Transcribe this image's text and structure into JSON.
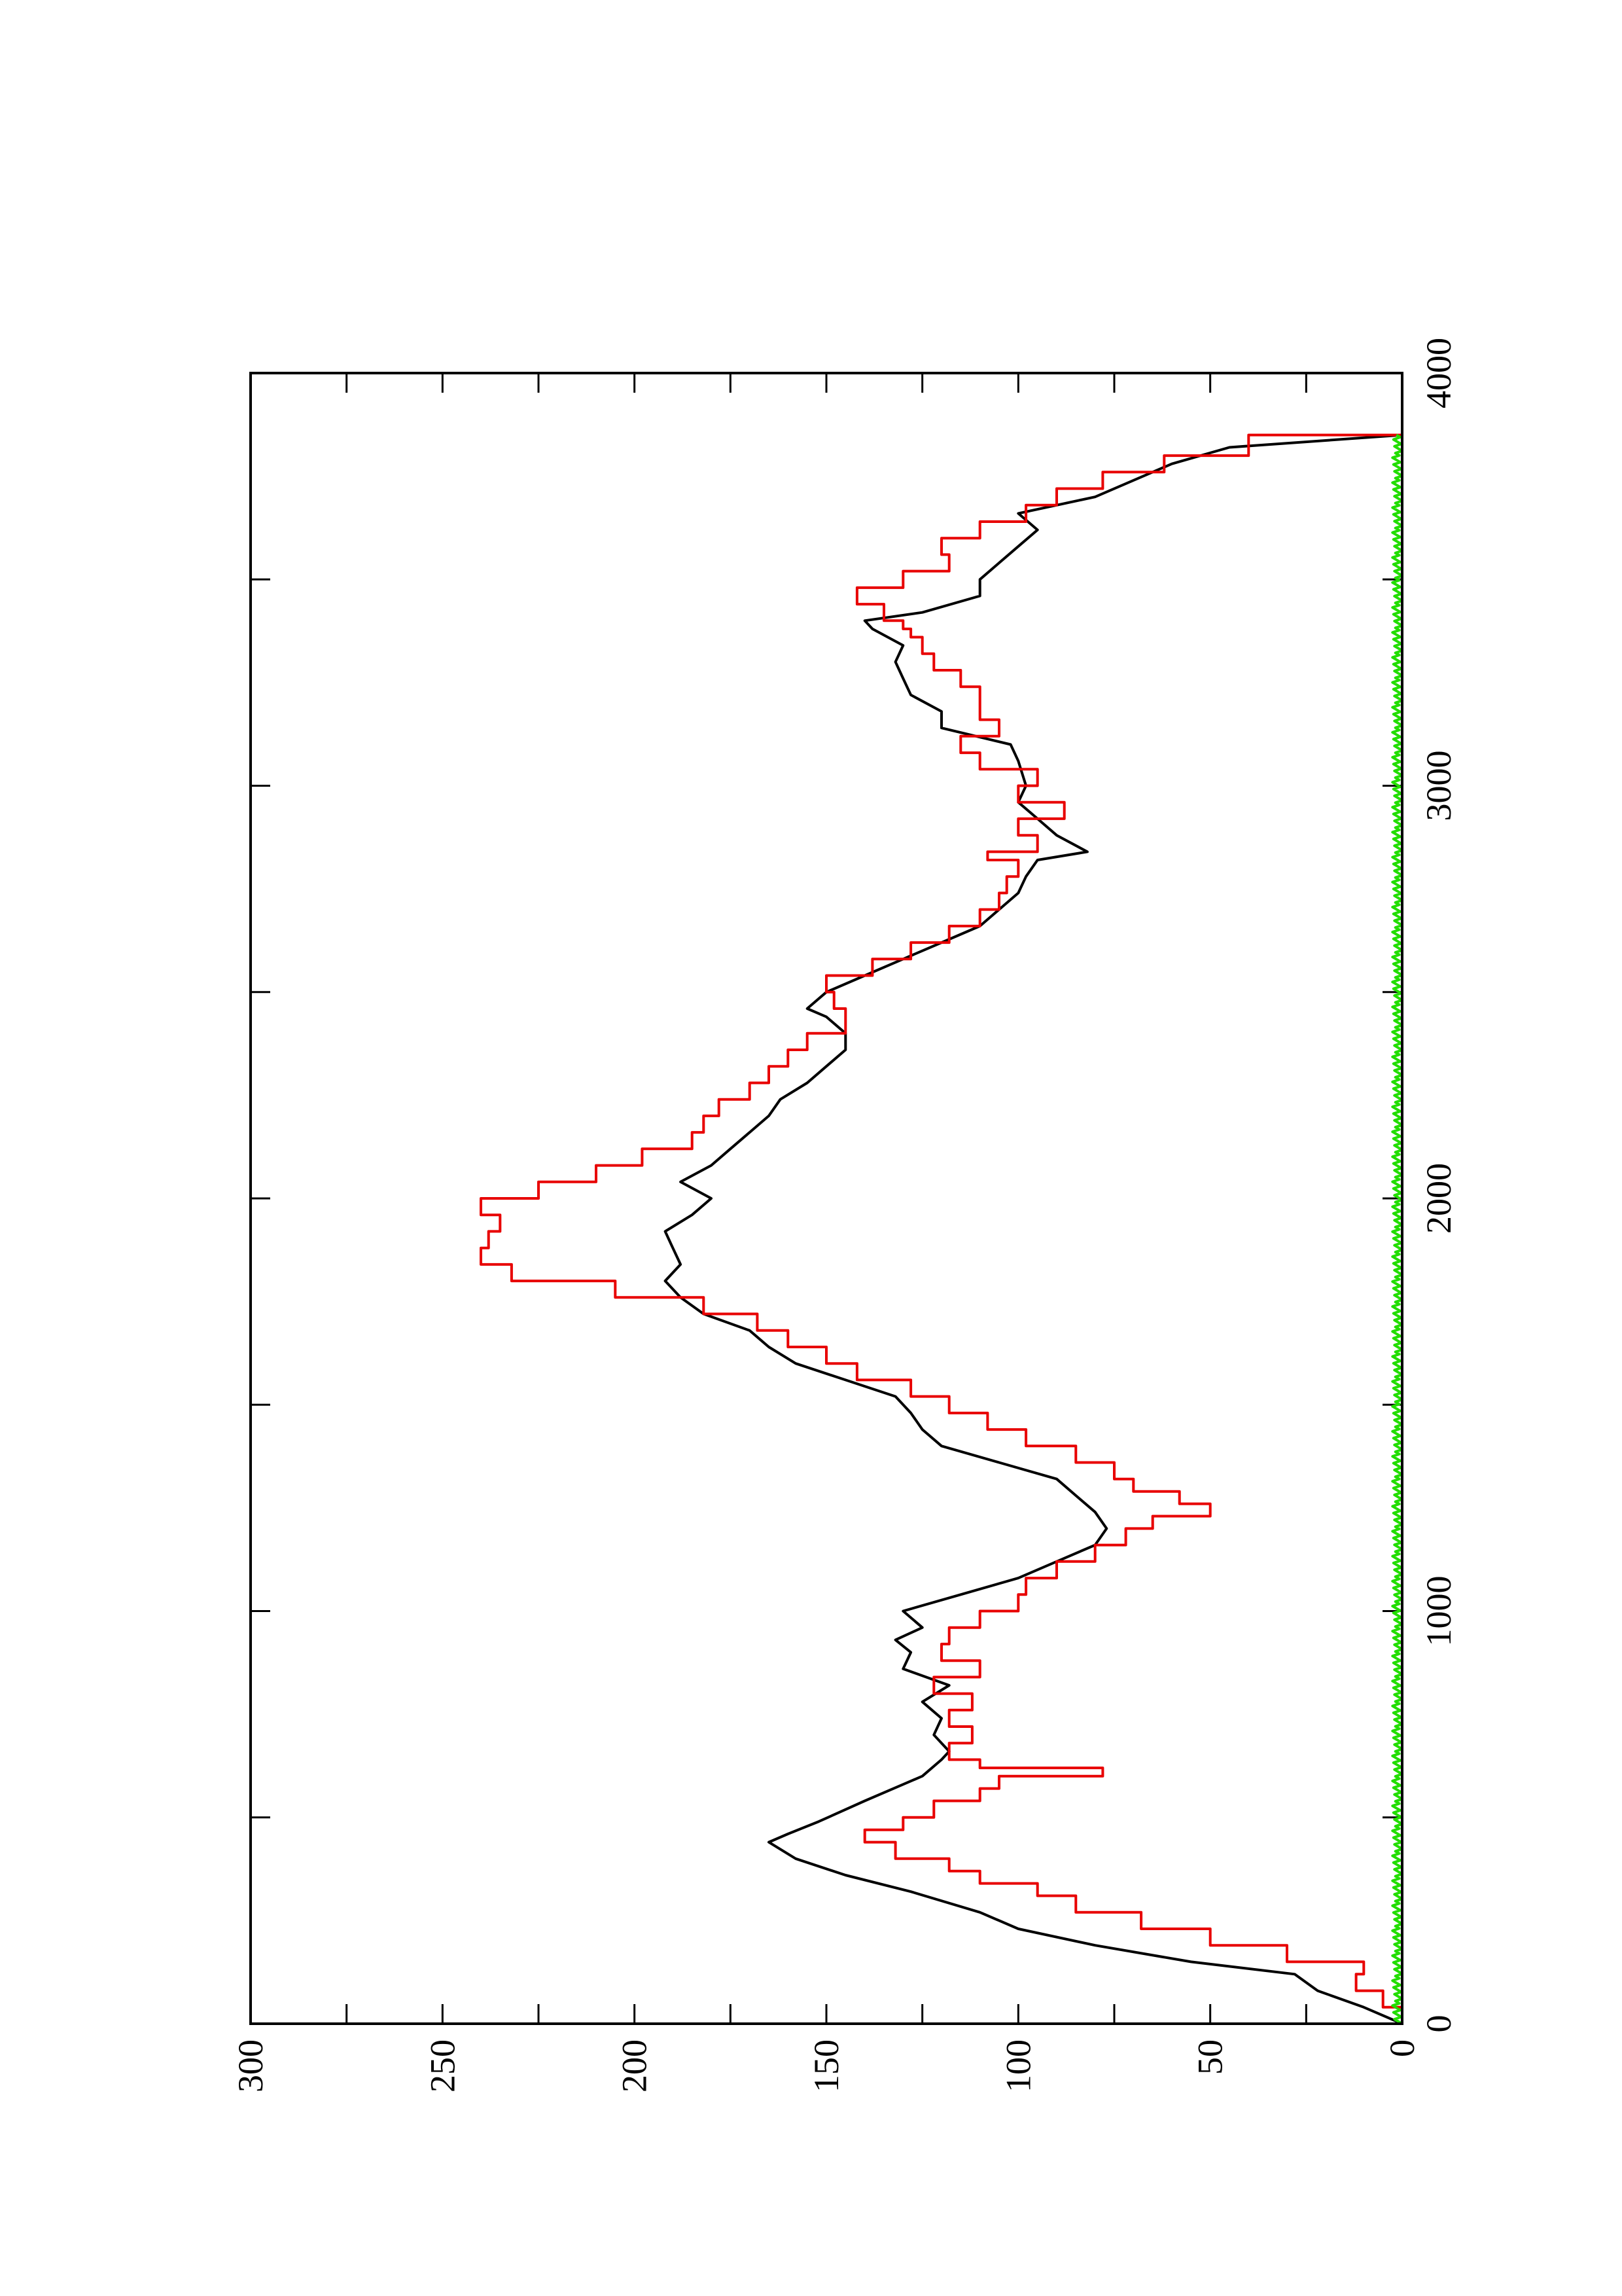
{
  "chart_data": {
    "type": "line",
    "orientation": "rotated-90-ccw",
    "title": "",
    "xlabel": "",
    "ylabel": "",
    "xlim": [
      0,
      4000
    ],
    "ylim": [
      0,
      300
    ],
    "x_tick_labels": [
      "0",
      "1000",
      "2000",
      "3000",
      "4000"
    ],
    "y_tick_labels": [
      "0",
      "50",
      "100",
      "150",
      "200",
      "250",
      "300"
    ],
    "x_ticks": [
      0,
      500,
      1000,
      1500,
      2000,
      2500,
      3000,
      3500,
      4000
    ],
    "y_ticks": [
      0,
      25,
      50,
      75,
      100,
      125,
      150,
      175,
      200,
      225,
      250,
      275,
      300
    ],
    "grid": false,
    "legend": "none",
    "series": [
      {
        "color": "#000000",
        "x": [
          0,
          40,
          80,
          120,
          150,
          190,
          230,
          270,
          320,
          360,
          400,
          440,
          460,
          490,
          540,
          580,
          600,
          640,
          660,
          700,
          740,
          780,
          820,
          860,
          900,
          930,
          960,
          1000,
          1040,
          1080,
          1120,
          1160,
          1200,
          1240,
          1280,
          1320,
          1360,
          1400,
          1440,
          1480,
          1520,
          1560,
          1600,
          1640,
          1680,
          1720,
          1760,
          1800,
          1840,
          1880,
          1920,
          1960,
          2000,
          2040,
          2080,
          2120,
          2160,
          2200,
          2240,
          2280,
          2320,
          2360,
          2400,
          2440,
          2460,
          2500,
          2540,
          2580,
          2620,
          2660,
          2700,
          2740,
          2780,
          2820,
          2840,
          2880,
          2920,
          2960,
          3000,
          3060,
          3100,
          3140,
          3180,
          3220,
          3260,
          3300,
          3340,
          3380,
          3400,
          3420,
          3460,
          3500,
          3540,
          3580,
          3620,
          3660,
          3700,
          3740,
          3780,
          3820,
          3850
        ],
        "y": [
          0,
          10,
          22,
          28,
          55,
          80,
          100,
          110,
          128,
          145,
          158,
          165,
          160,
          152,
          140,
          130,
          125,
          120,
          118,
          122,
          120,
          125,
          118,
          130,
          128,
          132,
          125,
          130,
          115,
          100,
          90,
          80,
          77,
          80,
          85,
          90,
          105,
          120,
          125,
          128,
          132,
          145,
          158,
          165,
          170,
          182,
          188,
          192,
          188,
          190,
          192,
          185,
          180,
          188,
          180,
          175,
          170,
          165,
          162,
          155,
          150,
          145,
          145,
          150,
          155,
          150,
          140,
          130,
          120,
          110,
          105,
          100,
          98,
          95,
          82,
          90,
          95,
          100,
          98,
          100,
          102,
          120,
          120,
          128,
          130,
          132,
          130,
          138,
          140,
          125,
          110,
          110,
          105,
          100,
          95,
          100,
          80,
          70,
          60,
          45,
          0
        ]
      },
      {
        "color": "#e80000",
        "x": [
          0,
          40,
          80,
          120,
          150,
          190,
          230,
          270,
          310,
          340,
          370,
          400,
          440,
          470,
          500,
          540,
          570,
          600,
          620,
          640,
          680,
          720,
          760,
          800,
          840,
          880,
          920,
          960,
          1000,
          1040,
          1080,
          1120,
          1160,
          1200,
          1230,
          1260,
          1290,
          1320,
          1360,
          1400,
          1440,
          1480,
          1520,
          1560,
          1600,
          1640,
          1680,
          1720,
          1760,
          1800,
          1840,
          1880,
          1920,
          1960,
          2000,
          2040,
          2080,
          2120,
          2160,
          2200,
          2240,
          2280,
          2320,
          2360,
          2400,
          2440,
          2460,
          2500,
          2540,
          2580,
          2620,
          2660,
          2700,
          2740,
          2780,
          2820,
          2840,
          2880,
          2920,
          2960,
          3000,
          3040,
          3080,
          3120,
          3160,
          3200,
          3240,
          3280,
          3320,
          3360,
          3380,
          3400,
          3440,
          3480,
          3520,
          3560,
          3600,
          3640,
          3680,
          3720,
          3760,
          3800,
          3850
        ],
        "y": [
          0,
          5,
          12,
          10,
          30,
          50,
          68,
          85,
          95,
          110,
          118,
          132,
          140,
          130,
          122,
          110,
          105,
          78,
          110,
          118,
          112,
          118,
          112,
          122,
          110,
          120,
          118,
          110,
          100,
          98,
          90,
          80,
          72,
          65,
          50,
          58,
          70,
          75,
          85,
          98,
          108,
          118,
          128,
          142,
          150,
          160,
          168,
          182,
          205,
          232,
          240,
          238,
          235,
          240,
          225,
          210,
          198,
          185,
          182,
          178,
          170,
          165,
          160,
          155,
          145,
          145,
          148,
          150,
          138,
          128,
          118,
          110,
          105,
          103,
          100,
          108,
          95,
          100,
          88,
          100,
          95,
          110,
          115,
          105,
          110,
          110,
          115,
          122,
          125,
          128,
          130,
          135,
          142,
          130,
          118,
          120,
          110,
          98,
          90,
          78,
          62,
          40,
          0
        ]
      },
      {
        "color": "#22dd00",
        "noise_amplitude": 2.5,
        "x": [
          0,
          3850
        ],
        "y": [
          0,
          0
        ]
      }
    ]
  }
}
